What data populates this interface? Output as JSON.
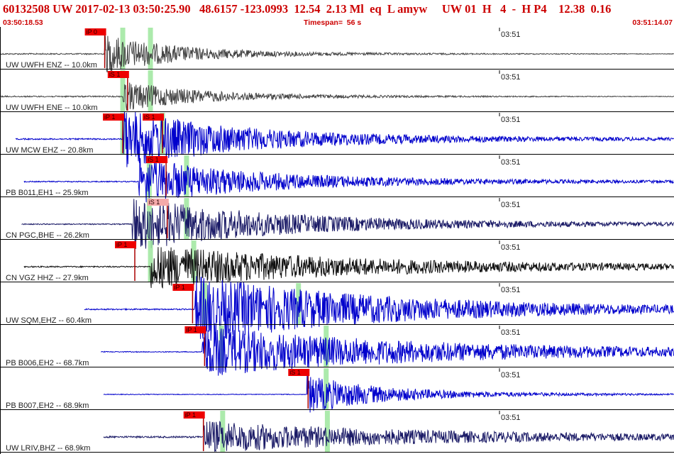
{
  "header": {
    "event_line": "60132508 UW 2017-02-13 03:50:25.90   48.6157 -123.0993  12.54  2.13 Ml  eq  L amyw     UW 01  H   4  -  H P4    12.38  0.16",
    "start_time": "03:50:18.53",
    "timespan": "Timespan=  56 s",
    "end_time": "03:51:14.07"
  },
  "colors": {
    "header_text": "#cc0000",
    "pick_flag": "#ee0000",
    "pick_flag_light": "#f4aaaa",
    "pick_window": "#9ee69e",
    "trace_blue": "#0000cc",
    "trace_navy": "#1a1a66",
    "trace_black": "#111111",
    "trace_gray": "#444444",
    "divider": "#000000"
  },
  "time_tick_label": "03:51",
  "channels": [
    {
      "label": "UW UWFH ENZ -- 10.0km",
      "color": "trace_gray",
      "start_s": 0.0,
      "end_s": 56.0,
      "onset_s": 8.7,
      "amp": 0.42,
      "pre_noise": 0.015,
      "coda": 0.05,
      "decay_s": 6,
      "picks": [
        {
          "text": "iP 0",
          "t": 8.7,
          "light": false
        }
      ],
      "windows": [
        10.2,
        12.5
      ]
    },
    {
      "label": "UW UWFH ENE -- 10.0km",
      "color": "trace_gray",
      "start_s": 0.0,
      "end_s": 56.0,
      "onset_s": 10.2,
      "amp": 0.32,
      "pre_noise": 0.015,
      "coda": 0.05,
      "decay_s": 6,
      "picks": [
        {
          "text": "iS 1",
          "t": 10.6,
          "light": false
        }
      ],
      "windows": [
        10.2,
        12.5
      ]
    },
    {
      "label": "UW MCW EHZ -- 20.8km",
      "color": "trace_blue",
      "start_s": 1.3,
      "end_s": 56.0,
      "onset_s": 10.2,
      "amp": 0.6,
      "pre_noise": 0.015,
      "coda": 0.12,
      "decay_s": 9,
      "picks": [
        {
          "text": "iP 1",
          "t": 10.2,
          "light": false
        },
        {
          "text": "iS 1",
          "t": 13.5,
          "light": false
        }
      ],
      "windows": [
        10.2,
        13.5
      ]
    },
    {
      "label": "PB B011,EH1 -- 25.9km",
      "color": "trace_blue",
      "start_s": 2.0,
      "end_s": 56.0,
      "onset_s": 11.5,
      "amp": 0.48,
      "pre_noise": 0.012,
      "coda": 0.1,
      "decay_s": 9,
      "picks": [
        {
          "text": "iS 1",
          "t": 13.8,
          "light": false
        }
      ],
      "windows": [
        12.4,
        15.5
      ]
    },
    {
      "label": "CN PGC,BHE -- 26.2km",
      "color": "trace_navy",
      "start_s": 1.8,
      "end_s": 56.0,
      "onset_s": 11.0,
      "amp": 0.55,
      "pre_noise": 0.012,
      "coda": 0.1,
      "decay_s": 11,
      "picks": [
        {
          "text": "iS 1",
          "t": 13.9,
          "light": true
        }
      ],
      "windows": [
        12.4,
        15.5
      ]
    },
    {
      "label": "CN VGZ HHZ -- 27.9km",
      "color": "trace_black",
      "start_s": 2.0,
      "end_s": 56.0,
      "onset_s": 12.5,
      "amp": 0.42,
      "pre_noise": 0.015,
      "coda": 0.12,
      "decay_s": 14,
      "picks": [
        {
          "text": "iP 1",
          "t": 11.2,
          "light": false
        }
      ],
      "windows": [
        12.5,
        16.1
      ]
    },
    {
      "label": "UW SQM,EHZ -- 60.4km",
      "color": "trace_blue",
      "start_s": 7.0,
      "end_s": 56.0,
      "onset_s": 16.2,
      "amp": 0.7,
      "pre_noise": 0.015,
      "coda": 0.12,
      "decay_s": 14,
      "picks": [
        {
          "text": "iP 1",
          "t": 16.0,
          "light": false
        }
      ],
      "windows": [
        17.0,
        24.8
      ]
    },
    {
      "label": "PB B006,EH2 -- 68.7km",
      "color": "trace_blue",
      "start_s": 8.4,
      "end_s": 56.0,
      "onset_s": 16.8,
      "amp": 0.5,
      "pre_noise": 0.01,
      "coda": 0.12,
      "decay_s": 16,
      "picks": [
        {
          "text": "iP 1",
          "t": 17.0,
          "light": false
        }
      ],
      "windows": [
        18.4,
        27.1
      ]
    },
    {
      "label": "PB B007,EH2 -- 68.9km",
      "color": "trace_blue",
      "start_s": 8.6,
      "end_s": 56.0,
      "onset_s": 25.5,
      "amp": 0.4,
      "pre_noise": 0.008,
      "coda": 0.06,
      "decay_s": 6,
      "picks": [
        {
          "text": "iS 1",
          "t": 25.6,
          "light": false
        }
      ],
      "windows": [
        27.1
      ]
    },
    {
      "label": "UW LRIV,BHZ -- 68.9km",
      "color": "trace_navy",
      "start_s": 8.6,
      "end_s": 56.0,
      "onset_s": 16.9,
      "amp": 0.28,
      "pre_noise": 0.02,
      "coda": 0.12,
      "decay_s": 14,
      "picks": [
        {
          "text": "iP 1",
          "t": 16.9,
          "light": false
        }
      ],
      "windows": [
        18.5,
        27.2
      ]
    }
  ]
}
